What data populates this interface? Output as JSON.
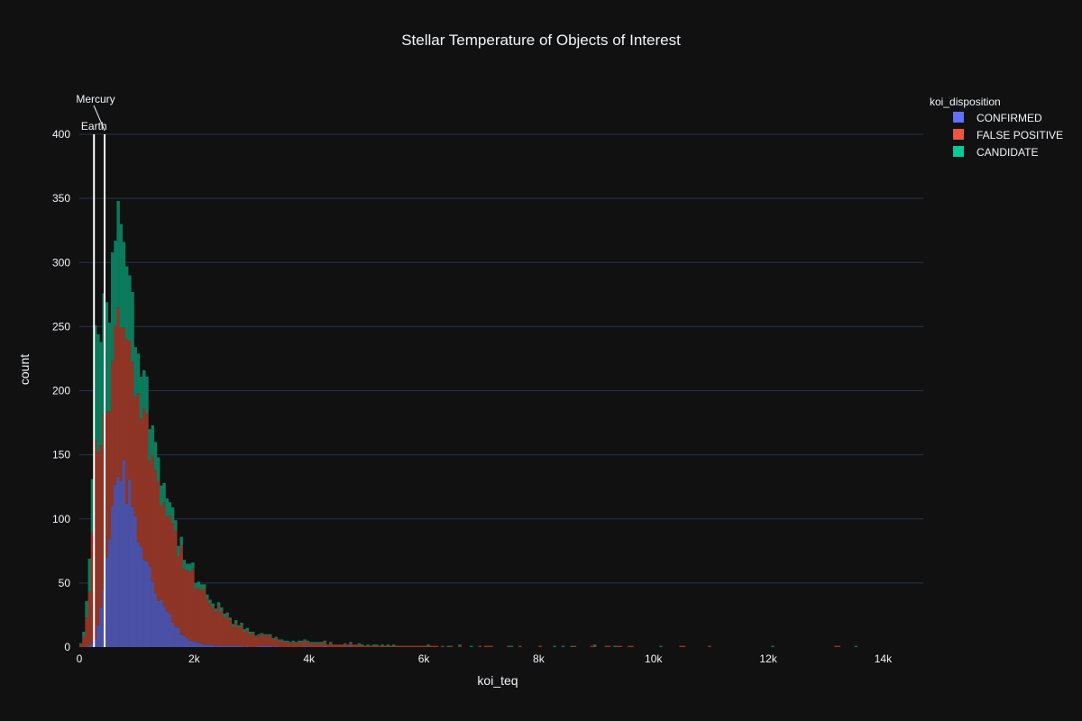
{
  "chart_data": {
    "type": "bar",
    "stacking": "stack",
    "title": "Stellar Temperature of Objects of Interest",
    "xlabel": "koi_teq",
    "ylabel": "count",
    "xlim": [
      0,
      14700
    ],
    "ylim": [
      0,
      400
    ],
    "x_ticks": [
      {
        "value": 0,
        "label": "0"
      },
      {
        "value": 2000,
        "label": "2k"
      },
      {
        "value": 4000,
        "label": "4k"
      },
      {
        "value": 6000,
        "label": "6k"
      },
      {
        "value": 8000,
        "label": "8k"
      },
      {
        "value": 10000,
        "label": "10k"
      },
      {
        "value": 12000,
        "label": "12k"
      },
      {
        "value": 14000,
        "label": "14k"
      }
    ],
    "y_ticks": [
      0,
      50,
      100,
      150,
      200,
      250,
      300,
      350,
      400
    ],
    "grid": true,
    "legend": {
      "title": "koi_disposition",
      "placement": "top-right"
    },
    "bin_width": 50,
    "series": [
      {
        "name": "CONFIRMED",
        "color": "#636efa",
        "profile": [
          [
            0,
            0
          ],
          [
            100,
            0
          ],
          [
            200,
            2
          ],
          [
            300,
            8
          ],
          [
            400,
            35
          ],
          [
            500,
            85
          ],
          [
            600,
            125
          ],
          [
            700,
            140
          ],
          [
            800,
            135
          ],
          [
            900,
            118
          ],
          [
            1000,
            100
          ],
          [
            1100,
            80
          ],
          [
            1200,
            62
          ],
          [
            1300,
            48
          ],
          [
            1400,
            38
          ],
          [
            1500,
            28
          ],
          [
            1600,
            20
          ],
          [
            1700,
            14
          ],
          [
            1800,
            9
          ],
          [
            1900,
            6
          ],
          [
            2000,
            4
          ],
          [
            2200,
            2
          ],
          [
            2500,
            1
          ],
          [
            3000,
            0.5
          ],
          [
            4000,
            0.2
          ],
          [
            5000,
            0
          ],
          [
            14700,
            0
          ]
        ]
      },
      {
        "name": "FALSE POSITIVE",
        "color": "#ef553b",
        "profile": [
          [
            0,
            0
          ],
          [
            100,
            10
          ],
          [
            200,
            55
          ],
          [
            300,
            170
          ],
          [
            400,
            120
          ],
          [
            500,
            115
          ],
          [
            600,
            112
          ],
          [
            700,
            118
          ],
          [
            800,
            120
          ],
          [
            900,
            118
          ],
          [
            1000,
            110
          ],
          [
            1100,
            108
          ],
          [
            1200,
            100
          ],
          [
            1300,
            98
          ],
          [
            1400,
            90
          ],
          [
            1500,
            82
          ],
          [
            1600,
            75
          ],
          [
            1700,
            68
          ],
          [
            1800,
            60
          ],
          [
            1900,
            52
          ],
          [
            2000,
            46
          ],
          [
            2200,
            36
          ],
          [
            2400,
            27
          ],
          [
            2600,
            20
          ],
          [
            2800,
            14
          ],
          [
            3000,
            10
          ],
          [
            3300,
            7
          ],
          [
            3600,
            4
          ],
          [
            4000,
            3
          ],
          [
            4500,
            2
          ],
          [
            5000,
            1.2
          ],
          [
            6000,
            0.6
          ],
          [
            7000,
            0.3
          ],
          [
            8000,
            0.2
          ],
          [
            10000,
            0.1
          ],
          [
            14700,
            0
          ]
        ]
      },
      {
        "name": "CANDIDATE",
        "color": "#00cc96",
        "profile": [
          [
            0,
            0
          ],
          [
            100,
            5
          ],
          [
            200,
            30
          ],
          [
            300,
            95
          ],
          [
            400,
            85
          ],
          [
            500,
            75
          ],
          [
            600,
            72
          ],
          [
            700,
            75
          ],
          [
            800,
            62
          ],
          [
            900,
            50
          ],
          [
            1000,
            40
          ],
          [
            1100,
            32
          ],
          [
            1200,
            26
          ],
          [
            1300,
            20
          ],
          [
            1400,
            16
          ],
          [
            1500,
            13
          ],
          [
            1600,
            11
          ],
          [
            1700,
            9
          ],
          [
            1800,
            7
          ],
          [
            1900,
            6
          ],
          [
            2000,
            5
          ],
          [
            2200,
            4
          ],
          [
            2400,
            3
          ],
          [
            2600,
            2.5
          ],
          [
            2800,
            2
          ],
          [
            3000,
            1.5
          ],
          [
            3500,
            1
          ],
          [
            4000,
            0.6
          ],
          [
            5000,
            0.4
          ],
          [
            6000,
            0.2
          ],
          [
            8000,
            0.1
          ],
          [
            14700,
            0
          ]
        ]
      }
    ],
    "annotations": [
      {
        "label": "Earth",
        "x": 255
      },
      {
        "label": "Mercury",
        "x": 440
      }
    ]
  }
}
